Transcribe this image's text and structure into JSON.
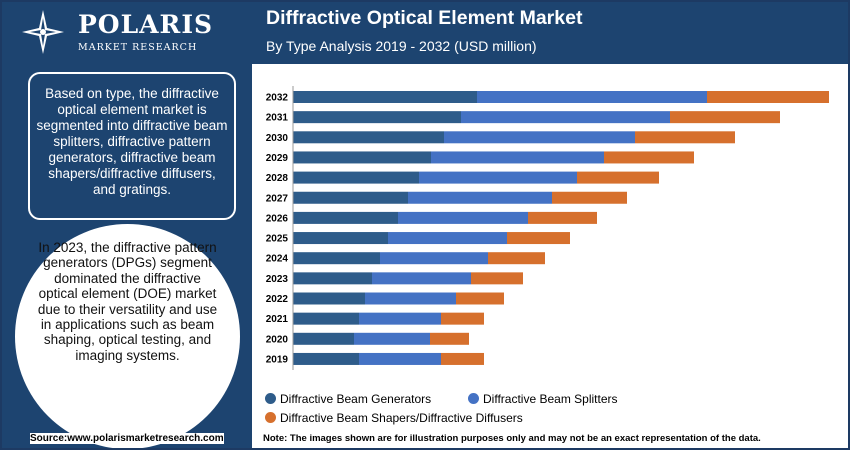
{
  "brand": {
    "name": "POLARIS",
    "subtitle": "MARKET RESEARCH"
  },
  "header": {
    "title": "Diffractive Optical Element Market",
    "subtitle": "By Type Analysis 2019 - 2032 (USD million)"
  },
  "info": {
    "box_text": "Based on type, the diffractive optical element market is segmented into diffractive beam splitters, diffractive pattern generators, diffractive beam shapers/diffractive diffusers, and gratings.",
    "circle_text": "In 2023, the diffractive pattern generators (DPGs) segment dominated the diffractive optical element (DOE) market due to their versatility and use in applications such as beam shaping, optical testing, and imaging systems."
  },
  "footer": {
    "source": "Source:www.polarismarketresearch.com",
    "note": "Note: The images shown are for illustration purposes only and may not be an exact representation of the data."
  },
  "colors": {
    "navy": "#1d4470",
    "generators": "#2e5c8a",
    "splitters": "#4472c4",
    "shapers": "#d6702d"
  },
  "chart_data": {
    "type": "bar",
    "orientation": "horizontal",
    "stacked": true,
    "categories": [
      "2032",
      "2031",
      "2030",
      "2029",
      "2028",
      "2027",
      "2026",
      "2025",
      "2024",
      "2023",
      "2022",
      "2021",
      "2020",
      "2019"
    ],
    "series": [
      {
        "name": "Diffractive Beam Generators",
        "color": "#2e5c8a",
        "values": [
          36.8,
          33.6,
          30.2,
          27.6,
          25.2,
          23.0,
          21.0,
          19.0,
          17.4,
          15.8,
          14.4,
          13.2,
          12.2,
          13.2
        ]
      },
      {
        "name": "Diffractive Beam Splitters",
        "color": "#4472c4",
        "values": [
          46.0,
          41.8,
          38.2,
          34.6,
          31.6,
          28.8,
          26.0,
          23.8,
          21.6,
          19.8,
          18.2,
          16.4,
          15.2,
          16.4
        ]
      },
      {
        "name": "Diffractive Beam Shapers/Diffractive Diffusers",
        "color": "#d6702d",
        "values": [
          24.4,
          22.0,
          20.0,
          18.0,
          16.4,
          15.0,
          13.8,
          12.6,
          11.4,
          10.4,
          9.6,
          8.6,
          7.8,
          8.6
        ]
      }
    ],
    "legend_position": "bottom",
    "grid": false
  }
}
